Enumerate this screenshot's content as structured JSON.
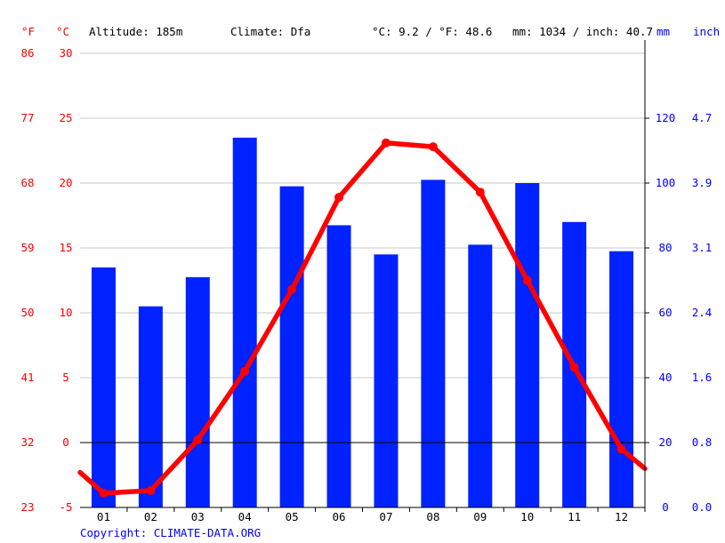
{
  "header": {
    "unit_f": "°F",
    "unit_c": "°C",
    "altitude": "Altitude: 185m",
    "climate": "Climate: Dfa",
    "avg_temp": "°C: 9.2 / °F: 48.6",
    "precip_total": "mm: 1034 / inch: 40.7",
    "unit_mm": "mm",
    "unit_inch": "inch"
  },
  "footer": {
    "copyright": "Copyright: CLIMATE-DATA.ORG"
  },
  "colors": {
    "temperature": "#ff0000",
    "precipitation": "#0022ff"
  },
  "chart_data": {
    "type": "bar",
    "categories": [
      "01",
      "02",
      "03",
      "04",
      "05",
      "06",
      "07",
      "08",
      "09",
      "10",
      "11",
      "12"
    ],
    "series": [
      {
        "type": "bar",
        "axis": "right",
        "unit": "mm",
        "values": [
          74,
          62,
          71,
          114,
          99,
          87,
          78,
          101,
          81,
          100,
          88,
          79
        ]
      },
      {
        "type": "line",
        "axis": "left",
        "unit": "°C",
        "values": [
          -3.9,
          -3.7,
          0.2,
          5.5,
          11.8,
          18.9,
          23.1,
          22.8,
          19.3,
          12.5,
          5.8,
          -0.5
        ],
        "edge_values": {
          "start": -2.3,
          "end": -2.0
        }
      }
    ],
    "y_left": {
      "celsius_ticks": [
        "30",
        "25",
        "20",
        "15",
        "10",
        "5",
        "0",
        "-5"
      ],
      "fahrenheit_ticks": [
        "86",
        "77",
        "68",
        "59",
        "50",
        "41",
        "32",
        "23"
      ],
      "ylim": [
        -5,
        30
      ]
    },
    "y_right": {
      "mm_ticks": [
        "120",
        "100",
        "80",
        "60",
        "40",
        "20",
        "0"
      ],
      "inch_ticks": [
        "4.7",
        "3.9",
        "3.1",
        "2.4",
        "1.6",
        "0.8",
        "0.0"
      ],
      "ylim": [
        0,
        140
      ]
    },
    "grid": true,
    "zero_line": true
  }
}
